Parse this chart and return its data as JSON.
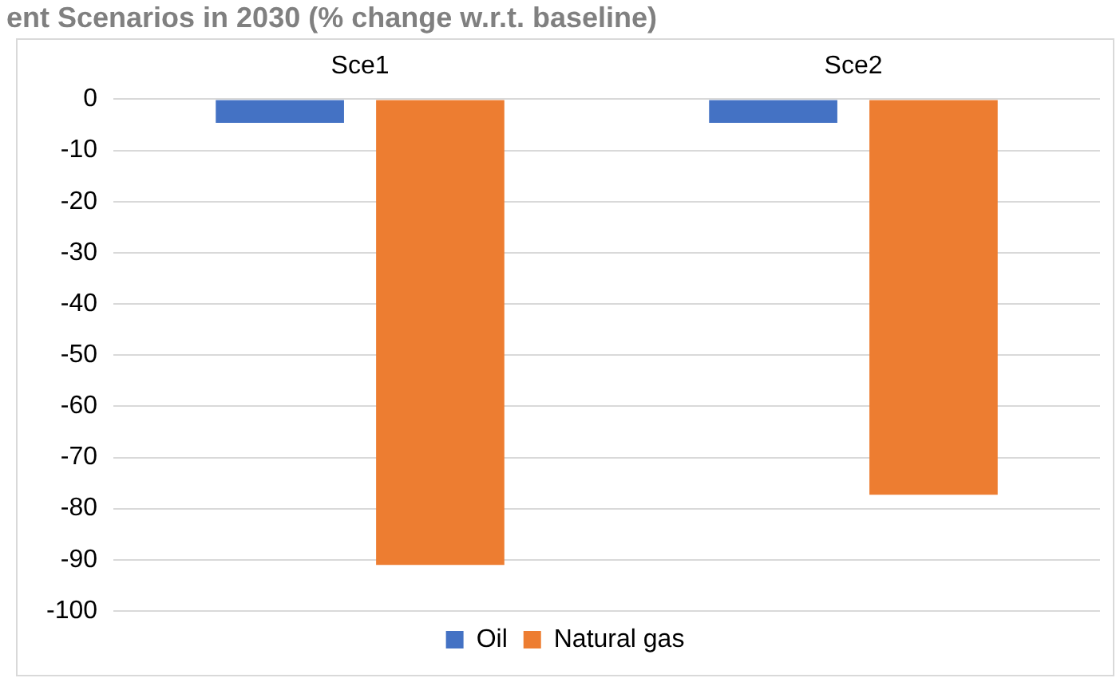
{
  "chart_data": {
    "type": "bar",
    "title": "ent Scenarios in 2030 (% change w.r.t. baseline)",
    "categories": [
      "Sce1",
      "Sce2"
    ],
    "series": [
      {
        "name": "Oil",
        "color": "#4472c4",
        "values": [
          -4.6,
          -4.6
        ]
      },
      {
        "name": "Natural gas",
        "color": "#ed7d31",
        "values": [
          -91,
          -77.3
        ]
      }
    ],
    "ylim": [
      -100,
      0
    ],
    "yticks": [
      0,
      -10,
      -20,
      -30,
      -40,
      -50,
      -60,
      -70,
      -80,
      -90,
      -100
    ],
    "grid": "y",
    "legend": "bottom"
  }
}
